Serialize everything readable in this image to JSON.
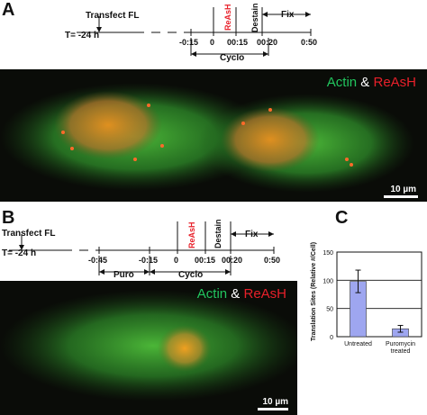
{
  "panel_a": {
    "letter": "A",
    "timeline": {
      "transfect": "Transfect FL",
      "t0": "T= -24 h",
      "times": [
        "-0:15",
        "0",
        "00:15",
        "00:20",
        "0:50"
      ],
      "reash": "ReAsH",
      "destain": "Destain",
      "fix": "Fix",
      "cyclo": "Cyclo"
    },
    "legend": {
      "actin": "Actin",
      "amp": "&",
      "reash": "ReAsH"
    },
    "scale": "10 µm"
  },
  "panel_b": {
    "letter": "B",
    "timeline": {
      "transfect": "Transfect FL",
      "t0": "T= -24 h",
      "times": [
        "-0:45",
        "-0:15",
        "0",
        "00:15",
        "00:20",
        "0:50"
      ],
      "reash": "ReAsH",
      "destain": "Destain",
      "fix": "Fix",
      "puro": "Puro",
      "cyclo": "Cyclo"
    },
    "legend": {
      "actin": "Actin",
      "amp": "&",
      "reash": "ReAsH"
    },
    "scale": "10 µm"
  },
  "panel_c": {
    "letter": "C"
  },
  "colors": {
    "actin": "#22c55e",
    "reash": "#e8202a",
    "bar": "#9ea6f0"
  },
  "chart_data": {
    "type": "bar",
    "categories": [
      "Untreated",
      "Puromycin\ntreated"
    ],
    "values": [
      98,
      14
    ],
    "errors": [
      20,
      6
    ],
    "ylabel": "Translation Sites (Relative #/Cell)",
    "ylim": [
      0,
      150
    ],
    "yticks": [
      0,
      50,
      100,
      150
    ],
    "grid": true
  }
}
